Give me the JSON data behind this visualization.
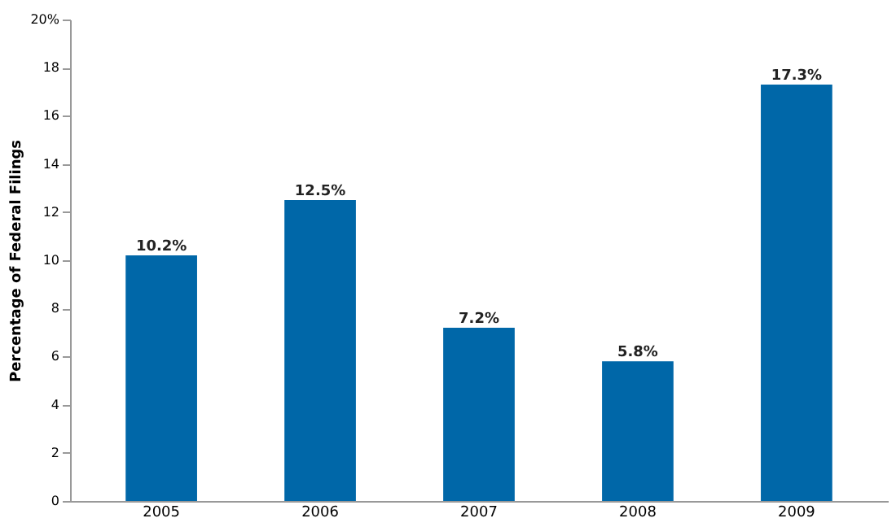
{
  "chart_data": {
    "type": "bar",
    "ylabel": "Percentage of Federal Filings",
    "categories": [
      "2005",
      "2006",
      "2007",
      "2008",
      "2009"
    ],
    "values": [
      10.2,
      12.5,
      7.2,
      5.8,
      17.3
    ],
    "value_labels": [
      "10.2%",
      "12.5%",
      "7.2%",
      "5.8%",
      "17.3%"
    ],
    "color": "#0067a8",
    "ylim": [
      0,
      20
    ],
    "yticks": [
      0,
      2,
      4,
      6,
      8,
      10,
      12,
      14,
      16,
      18,
      {
        "value": 20,
        "label": "20%"
      }
    ],
    "grid": false
  }
}
